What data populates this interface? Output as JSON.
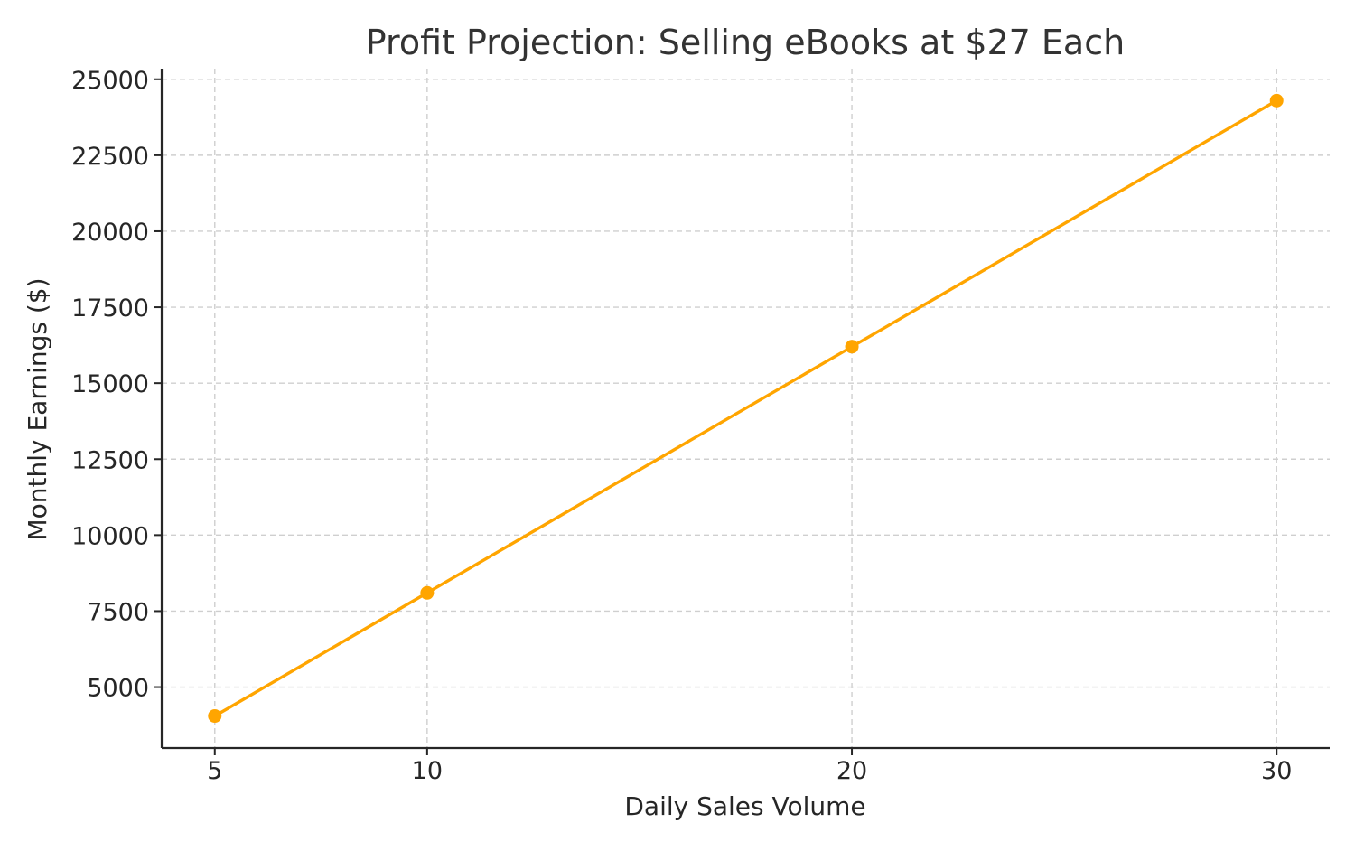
{
  "chart_data": {
    "type": "line",
    "title": "Profit Projection: Selling eBooks at $27 Each",
    "xlabel": "Daily Sales Volume",
    "ylabel": "Monthly Earnings ($)",
    "x_ticks": [
      5,
      10,
      20,
      30
    ],
    "y_ticks": [
      5000,
      7500,
      10000,
      12500,
      15000,
      17500,
      20000,
      22500,
      25000
    ],
    "xlim": [
      3.75,
      31.25
    ],
    "ylim": [
      2995,
      25350
    ],
    "grid": true,
    "series": [
      {
        "color": "#FFA500",
        "marker": "circle",
        "x": [
          5,
          10,
          20,
          30
        ],
        "y": [
          4050,
          8100,
          16200,
          24300
        ]
      }
    ]
  }
}
